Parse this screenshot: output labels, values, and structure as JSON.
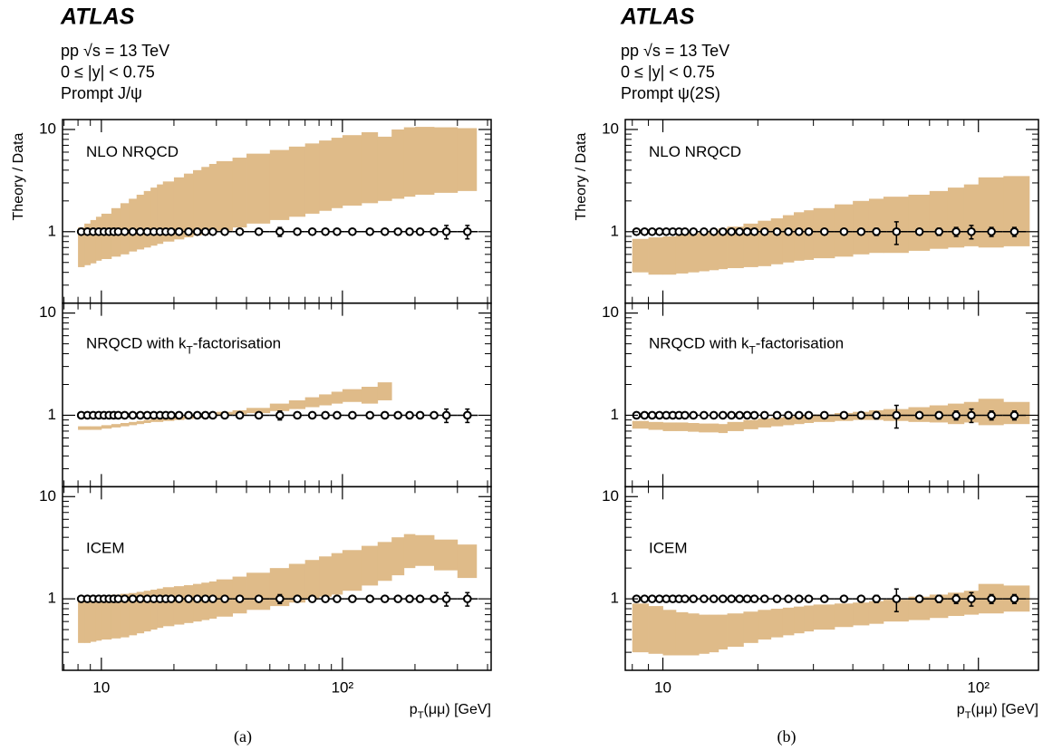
{
  "chart_data": [
    {
      "type": "ratio",
      "title": "ATLAS",
      "lines": [
        "pp √s = 13 TeV",
        "0 ≤ |y| < 0.75",
        "Prompt J/ψ"
      ],
      "caption": "(a)",
      "ylabel": "Theory / Data",
      "xlabel": [
        {
          "text": "p"
        },
        {
          "text": "T",
          "sub": true
        },
        {
          "text": "(μμ) [GeV]"
        }
      ],
      "log_x": true,
      "log_y": true,
      "xlim": [
        6.9,
        414
      ],
      "xticks": [
        10,
        {
          "value": 100,
          "label": "10²"
        }
      ],
      "xminor": [
        7,
        8,
        9,
        20,
        30,
        40,
        50,
        60,
        70,
        80,
        90,
        200,
        300,
        400
      ],
      "ylim": [
        0.2,
        12.5
      ],
      "yticks": [
        1,
        10
      ],
      "yminor": [
        0.3,
        0.4,
        0.5,
        0.6,
        0.7,
        0.8,
        0.9,
        2,
        3,
        4,
        5,
        6,
        7,
        8,
        9
      ],
      "band_color": "#dfbb89",
      "marker_color": "#000000",
      "data": {
        "x": [
          8.25,
          8.75,
          9.25,
          9.75,
          10.25,
          10.75,
          11.25,
          11.75,
          12.5,
          13.5,
          14.5,
          15.5,
          16.5,
          17.5,
          18.5,
          19.5,
          21,
          23,
          25,
          27,
          29,
          32.5,
          37.5,
          45,
          55,
          65,
          75,
          85,
          95,
          110,
          130,
          150,
          170,
          190,
          210,
          240,
          270,
          330
        ],
        "values": [
          1,
          1,
          1,
          1,
          1,
          1,
          1,
          1,
          1,
          1,
          1,
          1,
          1,
          1,
          1,
          1,
          1,
          1,
          1,
          1,
          1,
          1,
          1,
          1,
          1,
          1,
          1,
          1,
          1,
          1,
          1,
          1,
          1,
          1,
          1,
          1,
          1,
          1
        ],
        "errors": [
          0.02,
          0.02,
          0.02,
          0.02,
          0.02,
          0.02,
          0.02,
          0.02,
          0.02,
          0.02,
          0.02,
          0.02,
          0.02,
          0.02,
          0.02,
          0.02,
          0.02,
          0.02,
          0.02,
          0.02,
          0.02,
          0.02,
          0.02,
          0.02,
          0.1,
          0.02,
          0.02,
          0.02,
          0.02,
          0.02,
          0.02,
          0.02,
          0.02,
          0.07,
          0.07,
          0.02,
          0.15,
          0.15
        ]
      },
      "panels": [
        {
          "label": [
            {
              "text": "NLO NRQCD"
            }
          ],
          "bins": [
            8,
            8.5,
            9,
            9.5,
            10,
            11,
            12,
            13,
            14,
            15,
            16,
            17,
            18,
            20,
            22,
            24,
            26,
            28,
            30,
            35,
            40,
            50,
            60,
            70,
            80,
            90,
            100,
            120,
            140,
            160,
            180,
            200,
            240,
            300,
            360
          ],
          "lower": [
            0.45,
            0.47,
            0.49,
            0.52,
            0.54,
            0.57,
            0.6,
            0.64,
            0.67,
            0.7,
            0.73,
            0.76,
            0.8,
            0.84,
            0.88,
            0.92,
            0.95,
            0.98,
            1.02,
            1.1,
            1.2,
            1.3,
            1.4,
            1.5,
            1.6,
            1.7,
            1.8,
            1.9,
            2.0,
            2.1,
            2.2,
            2.3,
            2.4,
            2.5
          ],
          "upper": [
            1.1,
            1.2,
            1.3,
            1.4,
            1.5,
            1.7,
            1.9,
            2.1,
            2.3,
            2.5,
            2.7,
            2.9,
            3.1,
            3.4,
            3.7,
            4.0,
            4.3,
            4.6,
            4.9,
            5.3,
            5.8,
            6.3,
            6.8,
            7.3,
            7.8,
            8.3,
            8.8,
            9.4,
            8.5,
            10,
            10.5,
            10.6,
            10.5,
            10.3
          ]
        },
        {
          "label": [
            {
              "text": "NRQCD with k"
            },
            {
              "text": "T",
              "sub": true
            },
            {
              "text": "-factorisation"
            }
          ],
          "bins": [
            8,
            9,
            10,
            11,
            12,
            13,
            14,
            15,
            16,
            18,
            20,
            22,
            24,
            26,
            28,
            30,
            35,
            40,
            50,
            60,
            70,
            80,
            90,
            100,
            120,
            140,
            160
          ],
          "lower": [
            0.72,
            0.72,
            0.74,
            0.76,
            0.78,
            0.8,
            0.82,
            0.84,
            0.86,
            0.88,
            0.9,
            0.92,
            0.94,
            0.96,
            0.98,
            1.0,
            1.02,
            1.05,
            1.1,
            1.15,
            1.2,
            1.25,
            1.3,
            1.35,
            1.3,
            1.4
          ],
          "upper": [
            0.78,
            0.78,
            0.8,
            0.82,
            0.84,
            0.86,
            0.88,
            0.9,
            0.92,
            0.94,
            0.97,
            0.99,
            1.01,
            1.03,
            1.05,
            1.08,
            1.12,
            1.18,
            1.3,
            1.4,
            1.5,
            1.6,
            1.7,
            1.8,
            1.9,
            2.1
          ]
        },
        {
          "label": [
            {
              "text": "ICEM"
            }
          ],
          "bins": [
            8,
            8.5,
            9,
            9.5,
            10,
            11,
            12,
            13,
            14,
            15,
            16,
            17,
            18,
            20,
            22,
            24,
            26,
            28,
            30,
            35,
            40,
            50,
            60,
            70,
            80,
            90,
            100,
            120,
            140,
            160,
            180,
            200,
            240,
            300,
            360
          ],
          "lower": [
            0.37,
            0.37,
            0.38,
            0.39,
            0.4,
            0.41,
            0.42,
            0.44,
            0.46,
            0.48,
            0.5,
            0.52,
            0.54,
            0.56,
            0.58,
            0.6,
            0.62,
            0.64,
            0.67,
            0.72,
            0.78,
            0.85,
            0.92,
            1.0,
            1.05,
            1.1,
            1.2,
            1.35,
            1.5,
            1.7,
            2.0,
            2.1,
            1.9,
            1.6
          ],
          "upper": [
            1.0,
            1.02,
            1.04,
            1.06,
            1.08,
            1.1,
            1.12,
            1.14,
            1.17,
            1.2,
            1.23,
            1.26,
            1.3,
            1.33,
            1.36,
            1.4,
            1.44,
            1.48,
            1.55,
            1.65,
            1.8,
            2.0,
            2.2,
            2.4,
            2.6,
            2.8,
            3.0,
            3.3,
            3.6,
            4.0,
            4.3,
            4.2,
            3.8,
            3.4
          ]
        }
      ]
    },
    {
      "type": "ratio",
      "title": "ATLAS",
      "lines": [
        "pp √s = 13 TeV",
        "0 ≤ |y| < 0.75",
        "Prompt ψ(2S)"
      ],
      "caption": "(b)",
      "ylabel": "Theory / Data",
      "xlabel": [
        {
          "text": "p"
        },
        {
          "text": "T",
          "sub": true
        },
        {
          "text": "(μμ) [GeV]"
        }
      ],
      "log_x": true,
      "log_y": true,
      "xlim": [
        7.6,
        155
      ],
      "xticks": [
        10,
        {
          "value": 100,
          "label": "10²"
        }
      ],
      "xminor": [
        8,
        9,
        20,
        30,
        40,
        50,
        60,
        70,
        80,
        90
      ],
      "ylim": [
        0.2,
        12.5
      ],
      "yticks": [
        1,
        10
      ],
      "yminor": [
        0.3,
        0.4,
        0.5,
        0.6,
        0.7,
        0.8,
        0.9,
        2,
        3,
        4,
        5,
        6,
        7,
        8,
        9
      ],
      "band_color": "#dfbb89",
      "marker_color": "#000000",
      "data": {
        "x": [
          8.25,
          8.75,
          9.25,
          9.75,
          10.25,
          10.75,
          11.25,
          11.75,
          12.5,
          13.5,
          14.5,
          15.5,
          16.5,
          17.5,
          18.5,
          19.5,
          21,
          23,
          25,
          27,
          29,
          32.5,
          37.5,
          42.5,
          47.5,
          55,
          65,
          75,
          85,
          95,
          110,
          130
        ],
        "values": [
          1,
          1,
          1,
          1,
          1,
          1,
          1,
          1,
          1,
          1,
          1,
          1,
          1,
          1,
          1,
          1,
          1,
          1,
          1,
          1,
          1,
          1,
          1,
          1,
          1,
          1,
          1,
          1,
          1,
          1,
          1,
          1
        ],
        "errors": [
          0.02,
          0.02,
          0.02,
          0.02,
          0.02,
          0.02,
          0.02,
          0.02,
          0.02,
          0.02,
          0.02,
          0.02,
          0.02,
          0.02,
          0.02,
          0.02,
          0.02,
          0.02,
          0.02,
          0.02,
          0.02,
          0.02,
          0.02,
          0.02,
          0.08,
          0.25,
          0.02,
          0.08,
          0.1,
          0.15,
          0.1,
          0.1
        ]
      },
      "panels": [
        {
          "label": [
            {
              "text": "NLO NRQCD"
            }
          ],
          "bins": [
            8,
            9,
            10,
            11,
            12,
            13,
            14,
            15,
            16,
            18,
            20,
            22,
            24,
            26,
            28,
            30,
            35,
            40,
            45,
            50,
            60,
            70,
            80,
            90,
            100,
            120,
            145
          ],
          "lower": [
            0.4,
            0.38,
            0.38,
            0.39,
            0.4,
            0.41,
            0.42,
            0.43,
            0.44,
            0.45,
            0.46,
            0.48,
            0.5,
            0.52,
            0.53,
            0.55,
            0.57,
            0.6,
            0.62,
            0.62,
            0.65,
            0.68,
            0.7,
            0.72,
            0.7,
            0.72
          ],
          "upper": [
            0.85,
            0.88,
            0.9,
            0.93,
            0.97,
            1.0,
            1.04,
            1.08,
            1.12,
            1.2,
            1.28,
            1.35,
            1.45,
            1.55,
            1.62,
            1.7,
            1.85,
            2.0,
            2.1,
            2.2,
            2.3,
            2.5,
            2.7,
            2.9,
            3.4,
            3.5
          ]
        },
        {
          "label": [
            {
              "text": "NRQCD with k"
            },
            {
              "text": "T",
              "sub": true
            },
            {
              "text": "-factorisation"
            }
          ],
          "bins": [
            8,
            9,
            10,
            11,
            12,
            13,
            14,
            15,
            16,
            18,
            20,
            22,
            24,
            26,
            28,
            30,
            35,
            40,
            45,
            50,
            60,
            70,
            80,
            90,
            100,
            120,
            145
          ],
          "lower": [
            0.74,
            0.72,
            0.7,
            0.7,
            0.69,
            0.68,
            0.68,
            0.67,
            0.7,
            0.73,
            0.76,
            0.78,
            0.8,
            0.82,
            0.84,
            0.86,
            0.88,
            0.9,
            0.9,
            0.88,
            0.86,
            0.85,
            0.82,
            0.85,
            0.8,
            0.82
          ],
          "upper": [
            0.88,
            0.86,
            0.85,
            0.85,
            0.84,
            0.83,
            0.83,
            0.82,
            0.86,
            0.9,
            0.93,
            0.95,
            0.97,
            0.99,
            1.0,
            1.02,
            1.05,
            1.08,
            1.12,
            1.15,
            1.2,
            1.25,
            1.3,
            1.35,
            1.45,
            1.35
          ]
        },
        {
          "label": [
            {
              "text": "ICEM"
            }
          ],
          "bins": [
            8,
            9,
            10,
            11,
            12,
            13,
            14,
            15,
            16,
            18,
            20,
            22,
            24,
            26,
            28,
            30,
            35,
            40,
            45,
            50,
            60,
            70,
            80,
            90,
            100,
            120,
            145
          ],
          "lower": [
            0.3,
            0.29,
            0.28,
            0.28,
            0.28,
            0.29,
            0.3,
            0.32,
            0.34,
            0.37,
            0.4,
            0.42,
            0.44,
            0.46,
            0.48,
            0.5,
            0.53,
            0.55,
            0.57,
            0.6,
            0.62,
            0.65,
            0.68,
            0.7,
            0.72,
            0.75
          ],
          "upper": [
            0.9,
            0.85,
            0.78,
            0.74,
            0.72,
            0.7,
            0.7,
            0.7,
            0.72,
            0.75,
            0.78,
            0.8,
            0.82,
            0.84,
            0.86,
            0.88,
            0.9,
            0.92,
            0.95,
            0.98,
            1.05,
            1.1,
            1.15,
            1.2,
            1.4,
            1.35
          ]
        }
      ]
    }
  ]
}
